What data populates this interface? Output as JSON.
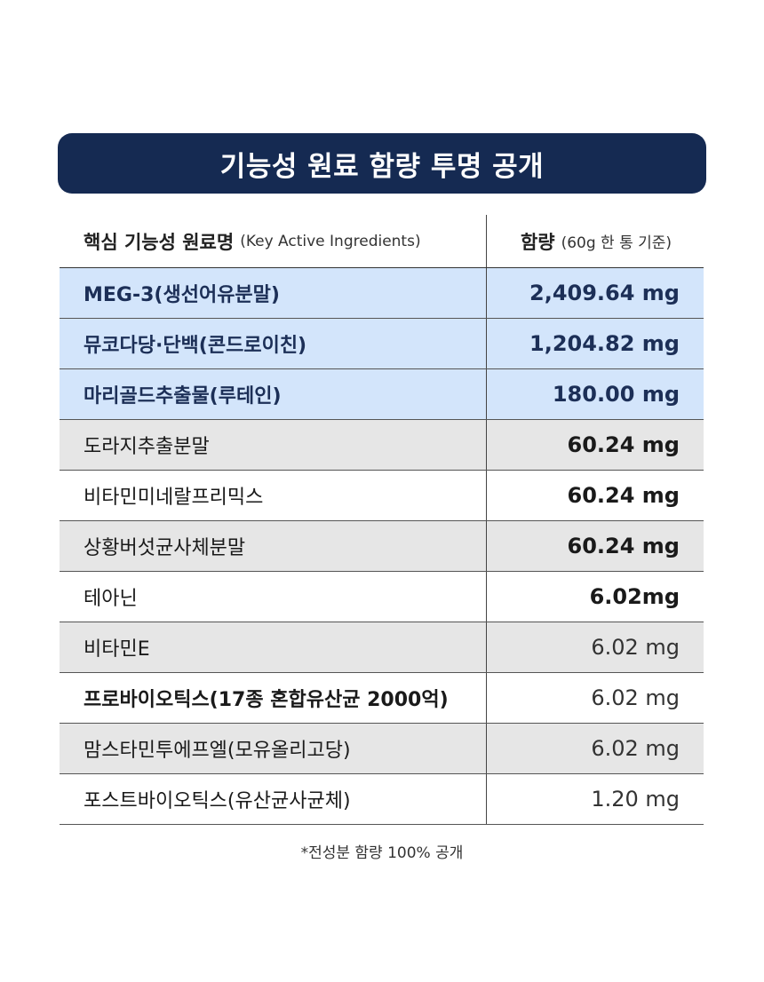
{
  "title": "기능성 원료 함량 투명 공개",
  "header": {
    "name_label": "핵심 기능성 원료명",
    "name_sub": "(Key Active Ingredients)",
    "amount_label": "함량",
    "amount_sub": "(60g 한 통 기준)"
  },
  "rows": [
    {
      "name": "MEG-3(생선어유분말)",
      "amount": "2,409.64 mg",
      "style": "blue"
    },
    {
      "name": "뮤코다당·단백(콘드로이친)",
      "amount": "1,204.82 mg",
      "style": "blue"
    },
    {
      "name": "마리골드추출물(루테인)",
      "amount": "180.00 mg",
      "style": "blue"
    },
    {
      "name": "도라지추출분말",
      "amount": "60.24 mg",
      "style": "gray"
    },
    {
      "name": "비타민미네랄프리믹스",
      "amount": "60.24 mg",
      "style": "white"
    },
    {
      "name": "상황버섯균사체분말",
      "amount": "60.24 mg",
      "style": "gray"
    },
    {
      "name": "테아닌",
      "amount": "6.02mg",
      "style": "white"
    },
    {
      "name": "비타민E",
      "amount": "6.02 mg",
      "style": "gray"
    },
    {
      "name": "프로바이오틱스(17종 혼합유산균 2000억)",
      "amount": "6.02 mg",
      "style": "white"
    },
    {
      "name": "맘스타민투에프엘(모유올리고당)",
      "amount": "6.02 mg",
      "style": "gray"
    },
    {
      "name": "포스트바이오틱스(유산균사균체)",
      "amount": "1.20 mg",
      "style": "white"
    }
  ],
  "footnote": "*전성분 함량 100% 공개"
}
